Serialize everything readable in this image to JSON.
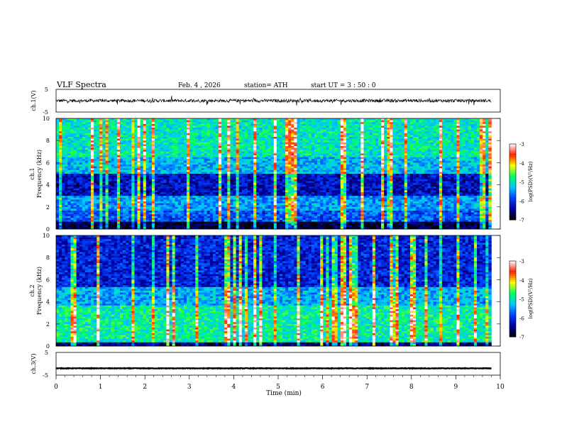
{
  "header": {
    "title": "VLF  Spectra",
    "date": "Feb. 4  , 2026",
    "station": "station= ATH",
    "start_ut": "start  UT  =    3  : 50 : 0"
  },
  "chart_data": [
    {
      "type": "line",
      "name": "ch1-waveform",
      "ylabel": "ch.1(V)",
      "ylim": [
        -5,
        5
      ],
      "yticks": [
        "5",
        "-5"
      ],
      "xlim": [
        0,
        10
      ],
      "trace_range_min": [
        0,
        9.8
      ],
      "trace_level_v": 0
    },
    {
      "type": "heatmap",
      "name": "ch1-spectrogram",
      "ylabel_line1": "ch.1",
      "ylabel_line2": "Frequency  (kHz)",
      "ylim": [
        0,
        10
      ],
      "yticks": [
        "0",
        "2",
        "4",
        "6",
        "8",
        "10"
      ],
      "xlim": [
        0,
        10
      ],
      "data_range_min": [
        0,
        9.8
      ],
      "color_scale": {
        "label": "log(PSD)(V²/Hz)",
        "ticks": [
          "-3",
          "-4",
          "-5",
          "-6",
          "-7"
        ],
        "range": [
          -7,
          -3
        ]
      }
    },
    {
      "type": "heatmap",
      "name": "ch2-spectrogram",
      "ylabel_line1": "ch.2",
      "ylabel_line2": "Frequency  (kHz)",
      "ylim": [
        0,
        10
      ],
      "yticks": [
        "0",
        "2",
        "4",
        "6",
        "8",
        "10"
      ],
      "xlim": [
        0,
        10
      ],
      "data_range_min": [
        0,
        9.8
      ],
      "color_scale": {
        "label": "log(PSD)(V²/Hz)",
        "ticks": [
          "-3",
          "-4",
          "-5",
          "-6",
          "-7"
        ],
        "range": [
          -7,
          -3
        ]
      }
    },
    {
      "type": "line",
      "name": "ch3-waveform",
      "ylabel": "ch.3(V)",
      "ylim": [
        -5,
        5
      ],
      "yticks": [
        "5",
        "-5"
      ],
      "xlim": [
        0,
        10
      ],
      "trace_range_min": [
        0,
        9.8
      ],
      "trace_level_v": -2
    }
  ],
  "x_axis": {
    "label": "Time  (min)",
    "ticks": [
      "0",
      "1",
      "2",
      "3",
      "4",
      "5",
      "6",
      "7",
      "8",
      "9",
      "10"
    ]
  },
  "colors": {
    "colormap": [
      "#000000",
      "#0000a0",
      "#0040ff",
      "#00c8ff",
      "#00ff60",
      "#ffff00",
      "#ff2000",
      "#ffffff"
    ]
  }
}
